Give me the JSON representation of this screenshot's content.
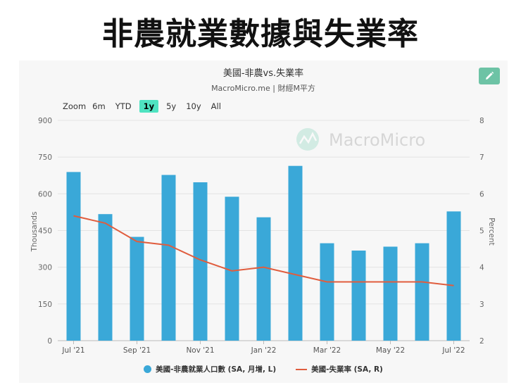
{
  "header": {
    "title": "非農就業數據與失業率"
  },
  "chart_card": {
    "title": "美國-非農vs.失業率",
    "subtitle": "MacroMicro.me | 財經M平方",
    "watermark": "MacroMicro",
    "edit_icon": "pencil-icon"
  },
  "zoom": {
    "label": "Zoom",
    "options": [
      "6m",
      "YTD",
      "1y",
      "5y",
      "10y",
      "All"
    ],
    "active": "1y"
  },
  "colors": {
    "bar": "#3aa8d8",
    "line": "#e05d3e",
    "accent": "#6dc3a5",
    "active_zoom": "#4fe3c1"
  },
  "chart_data": {
    "type": "bar",
    "title": "美國-非農vs.失業率",
    "subtitle": "MacroMicro.me | 財經M平方",
    "categories": [
      "Jul '21",
      "Aug '21",
      "Sep '21",
      "Oct '21",
      "Nov '21",
      "Dec '21",
      "Jan '22",
      "Feb '22",
      "Mar '22",
      "Apr '22",
      "May '22",
      "Jun '22",
      "Jul '22"
    ],
    "x_tick_labels": [
      "Jul '21",
      "Sep '21",
      "Nov '21",
      "Jan '22",
      "Mar '22",
      "May '22",
      "Jul '22"
    ],
    "series": [
      {
        "name": "美國-非農就業人口數 (SA, 月增, L)",
        "type": "bar",
        "axis": "left",
        "values": [
          689,
          517,
          424,
          677,
          647,
          588,
          504,
          714,
          398,
          368,
          384,
          398,
          528
        ]
      },
      {
        "name": "美國-失業率 (SA, R)",
        "type": "line",
        "axis": "right",
        "values": [
          5.4,
          5.2,
          4.7,
          4.6,
          4.2,
          3.9,
          4.0,
          3.8,
          3.6,
          3.6,
          3.6,
          3.6,
          3.5
        ]
      }
    ],
    "y_left": {
      "label": "Thousands",
      "lim": [
        0,
        900
      ],
      "ticks": [
        0,
        150,
        300,
        450,
        600,
        750,
        900
      ]
    },
    "y_right": {
      "label": "Percent",
      "lim": [
        2,
        8
      ],
      "ticks": [
        2,
        3,
        4,
        5,
        6,
        7,
        8
      ]
    },
    "grid": true,
    "legend_position": "bottom-center"
  }
}
